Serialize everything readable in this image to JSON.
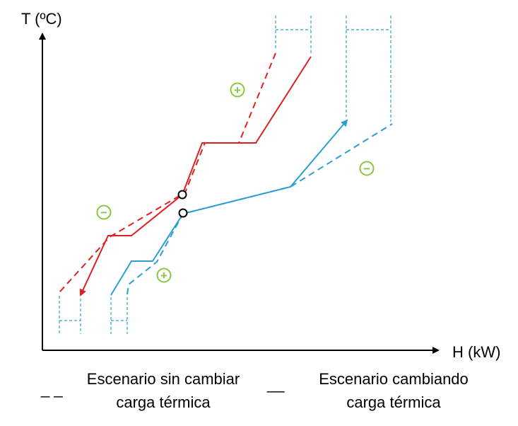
{
  "axes": {
    "y_label": "T (ºC)",
    "x_label": "H (kW)"
  },
  "legend": {
    "dashed_symbol": "_ _",
    "dashed_line1": "Escenario sin cambiar",
    "dashed_line2": "carga térmica",
    "solid_symbol": "__",
    "solid_line1": "Escenario cambiando",
    "solid_line2": "carga térmica"
  },
  "signs": {
    "plus": "+",
    "minus": "−"
  },
  "colors": {
    "hot_stream": "#e02020",
    "cold_stream": "#2a9fd0",
    "sign_green": "#8cc63f",
    "axis": "#000000"
  }
}
